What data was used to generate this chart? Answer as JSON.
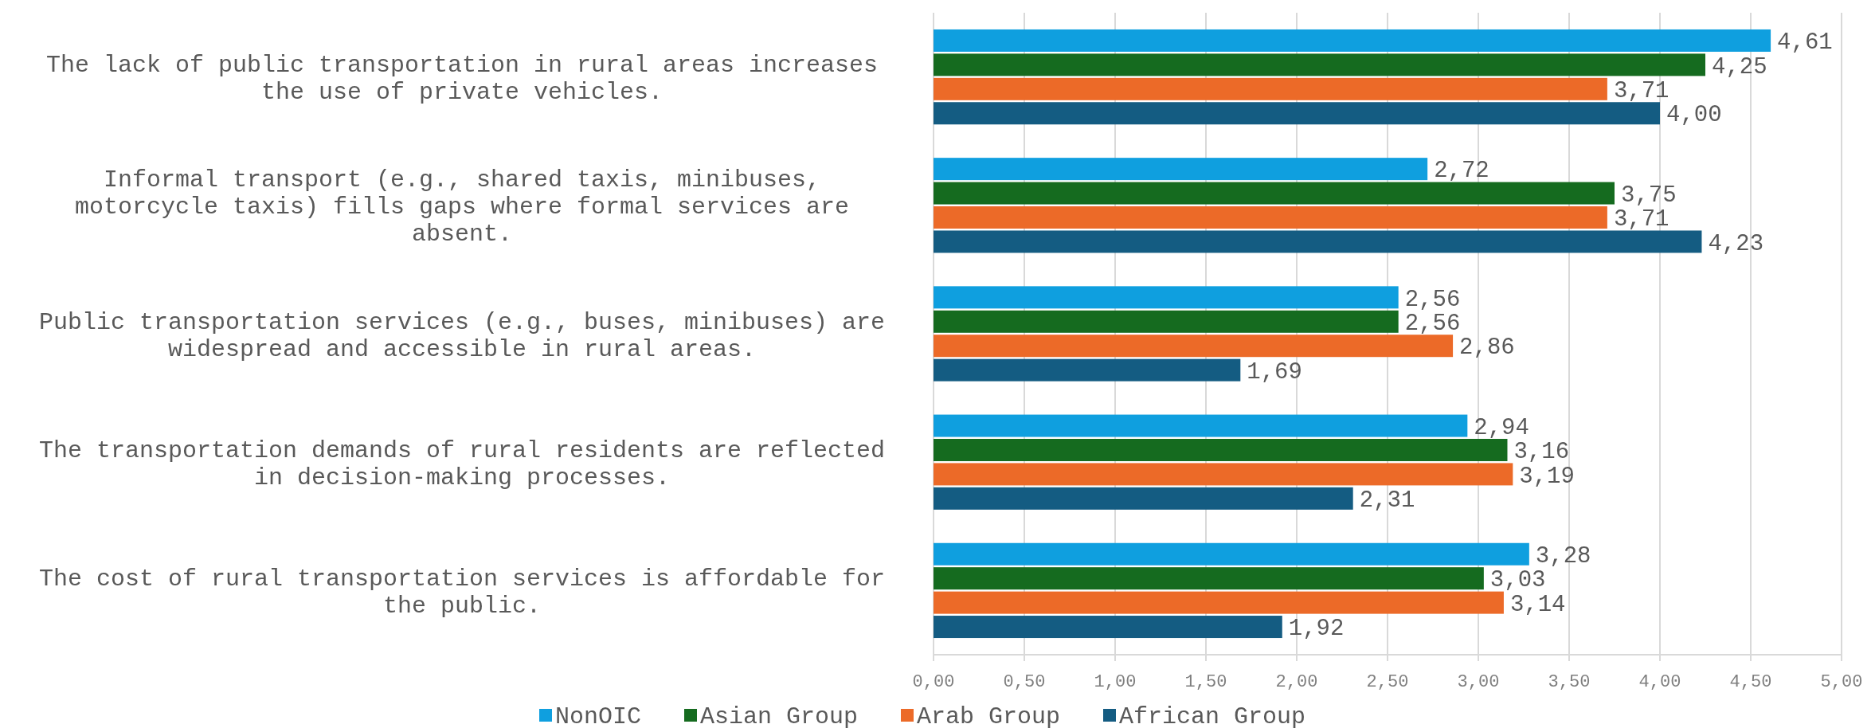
{
  "chart_data": {
    "type": "bar",
    "orientation": "horizontal",
    "categories": [
      "The lack of public transportation in rural areas increases the use of private vehicles.",
      "Informal transport (e.g., shared taxis, minibuses, motorcycle taxis) fills gaps where formal services are absent.",
      "Public transportation services (e.g., buses, minibuses) are widespread and accessible in rural areas.",
      "The transportation demands of rural residents are reflected in decision-making processes.",
      "The cost of rural transportation services is affordable for the public."
    ],
    "series": [
      {
        "name": "NonOIC",
        "color": "#0f9fdf",
        "values": [
          4.61,
          2.72,
          2.56,
          2.94,
          3.28
        ]
      },
      {
        "name": "Asian Group",
        "color": "#156b1f",
        "values": [
          4.25,
          3.75,
          2.56,
          3.16,
          3.03
        ]
      },
      {
        "name": "Arab Group",
        "color": "#ec6a28",
        "values": [
          3.71,
          3.71,
          2.86,
          3.19,
          3.14
        ]
      },
      {
        "name": "African Group",
        "color": "#145c82",
        "values": [
          4.0,
          4.23,
          1.69,
          2.31,
          1.92
        ]
      }
    ],
    "xlim": [
      0,
      5
    ],
    "xticks": [
      {
        "value": 0,
        "label": "0,00"
      },
      {
        "value": 0.5,
        "label": "0,50"
      },
      {
        "value": 1,
        "label": "1,00"
      },
      {
        "value": 1.5,
        "label": "1,50"
      },
      {
        "value": 2,
        "label": "2,00"
      },
      {
        "value": 2.5,
        "label": "2,50"
      },
      {
        "value": 3,
        "label": "3,00"
      },
      {
        "value": 3.5,
        "label": "3,50"
      },
      {
        "value": 4,
        "label": "4,00"
      },
      {
        "value": 4.5,
        "label": "4,50"
      },
      {
        "value": 5,
        "label": "5,00"
      }
    ],
    "value_labels": [
      [
        "4,61",
        "2,72",
        "2,56",
        "2,94",
        "3,28"
      ],
      [
        "4,25",
        "3,75",
        "2,56",
        "3,16",
        "3,03"
      ],
      [
        "3,71",
        "3,71",
        "2,86",
        "3,19",
        "3,14"
      ],
      [
        "4,00",
        "4,23",
        "1,69",
        "2,31",
        "1,92"
      ]
    ],
    "grid": "x",
    "legend": "bottom"
  }
}
